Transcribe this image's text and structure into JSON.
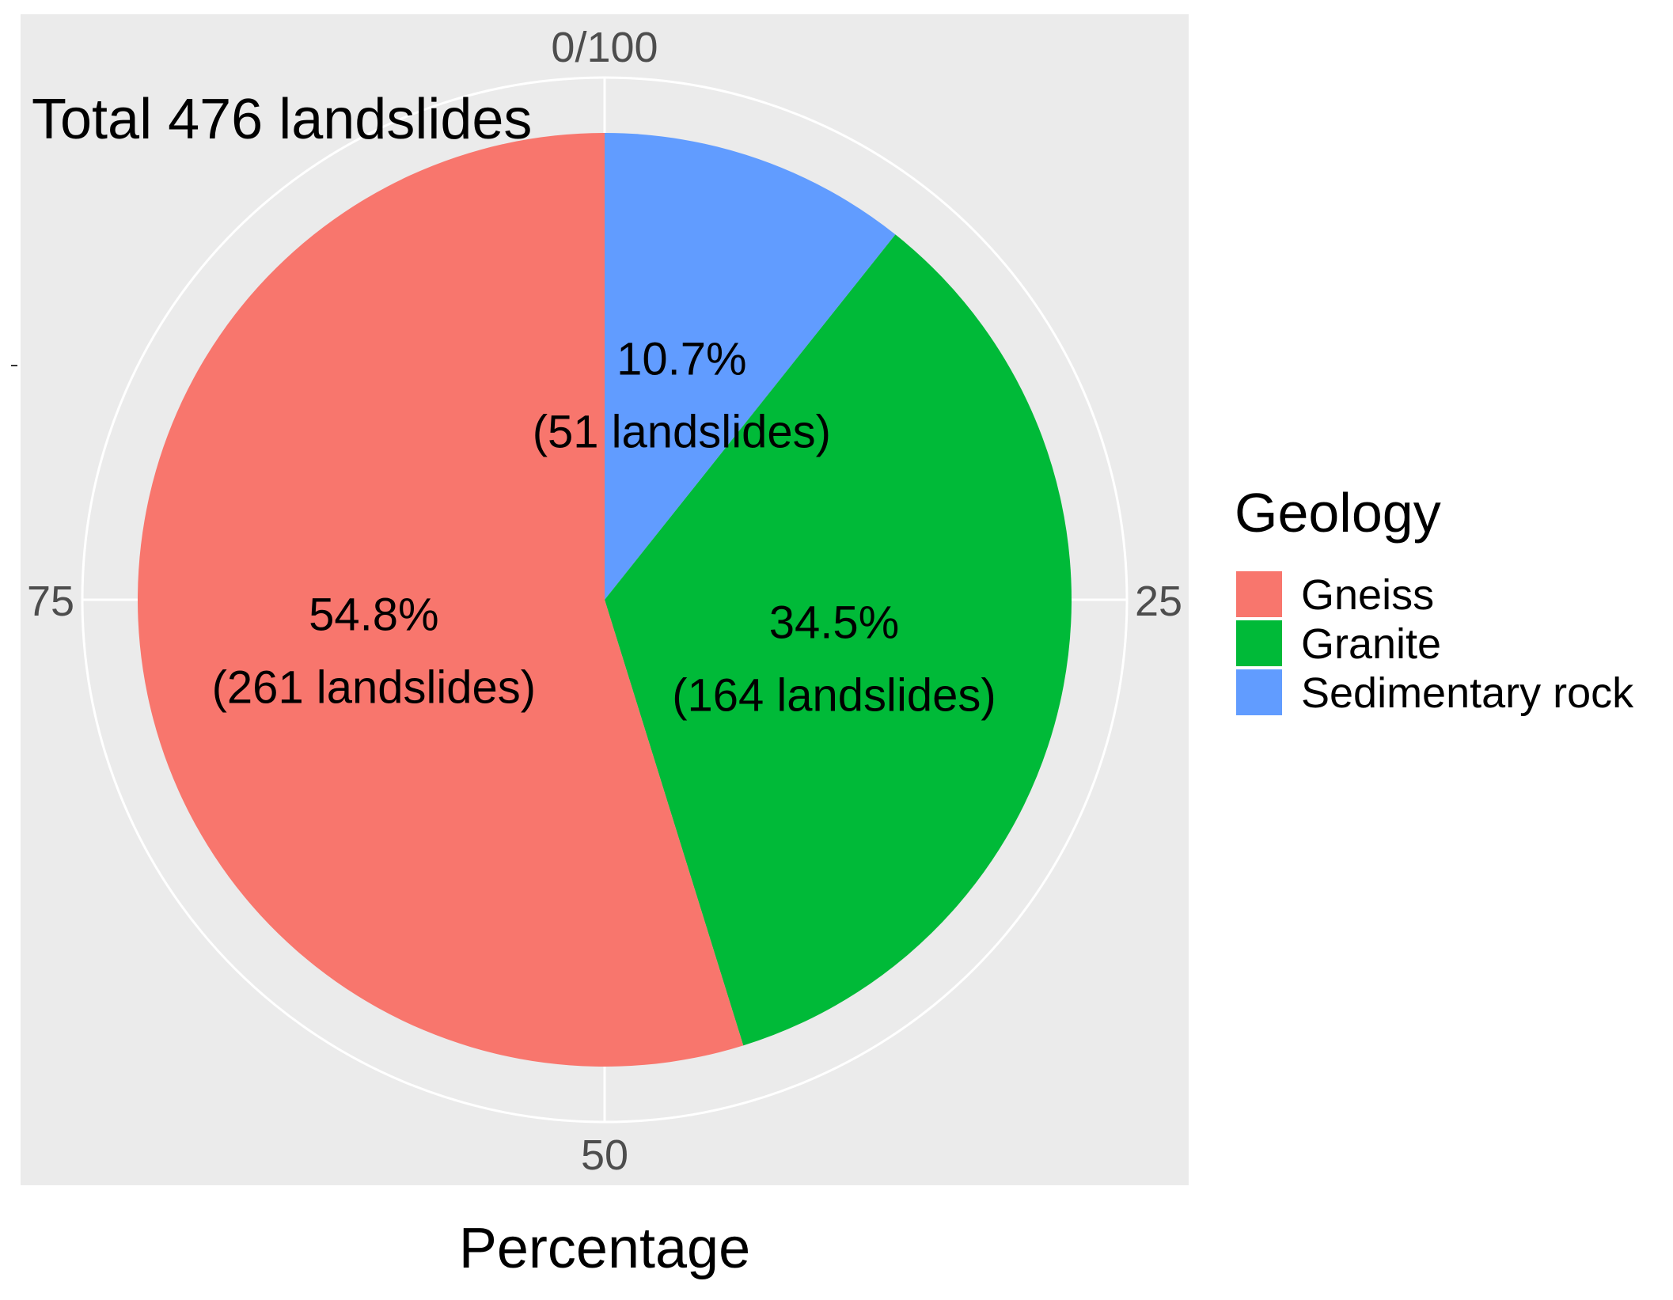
{
  "chart_data": {
    "type": "pie",
    "title": "Total 476 landslides",
    "xlabel": "Percentage",
    "ylabel": "",
    "axis": {
      "ticks": [
        "0/100",
        "25",
        "50",
        "75"
      ],
      "tick_values": [
        0,
        25,
        50,
        75
      ],
      "range": [
        0,
        100
      ]
    },
    "legend": {
      "title": "Geology",
      "position": "right"
    },
    "slices": [
      {
        "name": "Sedimentary rock",
        "value": 10.7,
        "count": 51,
        "label_pct": "10.7%",
        "label_count": "(51 landslides)",
        "color": "#619CFF"
      },
      {
        "name": "Granite",
        "value": 34.5,
        "count": 164,
        "label_pct": "34.5%",
        "label_count": "(164 landslides)",
        "color": "#00BA38"
      },
      {
        "name": "Gneiss",
        "value": 54.8,
        "count": 261,
        "label_pct": "54.8%",
        "label_count": "(261 landslides)",
        "color": "#F8766D"
      }
    ],
    "legend_order": [
      "Gneiss",
      "Granite",
      "Sedimentary rock"
    ],
    "panel_background": "#EBEBEB",
    "grid_color": "#FFFFFF",
    "grid": true
  }
}
